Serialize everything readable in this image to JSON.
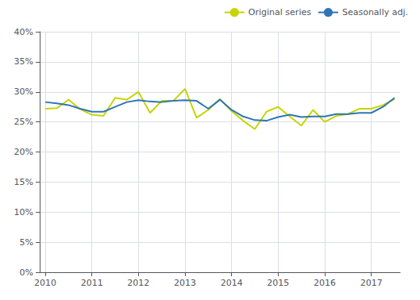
{
  "chart_data": {
    "type": "line",
    "x": [
      2010,
      2010.25,
      2010.5,
      2010.75,
      2011,
      2011.25,
      2011.5,
      2011.75,
      2012,
      2012.25,
      2012.5,
      2012.75,
      2013,
      2013.25,
      2013.5,
      2013.75,
      2014,
      2014.25,
      2014.5,
      2014.75,
      2015,
      2015.25,
      2015.5,
      2015.75,
      2016,
      2016.25,
      2016.5,
      2016.75,
      2017,
      2017.25,
      2017.5
    ],
    "series": [
      {
        "name": "Original series",
        "color": "#c8d400",
        "values": [
          27.2,
          27.3,
          28.7,
          27.1,
          26.2,
          26.0,
          29.0,
          28.7,
          30.0,
          26.5,
          28.5,
          28.5,
          30.5,
          25.7,
          27.0,
          28.8,
          26.8,
          25.2,
          23.8,
          26.7,
          27.5,
          25.9,
          24.4,
          27.0,
          25.0,
          26.0,
          26.3,
          27.2,
          27.2,
          27.8,
          28.8
        ]
      },
      {
        "name": "Seasonally adj.",
        "color": "#2e75b6",
        "values": [
          28.3,
          28.1,
          27.8,
          27.2,
          26.7,
          26.7,
          27.5,
          28.3,
          28.6,
          28.4,
          28.3,
          28.5,
          28.6,
          28.5,
          27.2,
          28.7,
          27.0,
          25.9,
          25.3,
          25.2,
          25.8,
          26.2,
          25.8,
          25.9,
          25.9,
          26.3,
          26.3,
          26.5,
          26.5,
          27.5,
          29.0
        ]
      }
    ],
    "xlim": [
      2009.88,
      2017.62
    ],
    "xticks": [
      2010,
      2011,
      2012,
      2013,
      2014,
      2015,
      2016,
      2017
    ],
    "ylim": [
      0,
      40
    ],
    "yticks": [
      {
        "value": 0,
        "label": "0%"
      },
      {
        "value": 5,
        "label": "5%"
      },
      {
        "value": 10,
        "label": "10%"
      },
      {
        "value": 15,
        "label": "15%"
      },
      {
        "value": 20,
        "label": "20%"
      },
      {
        "value": 25,
        "label": "25%"
      },
      {
        "value": 30,
        "label": "30%"
      },
      {
        "value": 35,
        "label": "35%"
      },
      {
        "value": 40,
        "label": "40%"
      }
    ],
    "grid": true,
    "legend": "upper right"
  }
}
